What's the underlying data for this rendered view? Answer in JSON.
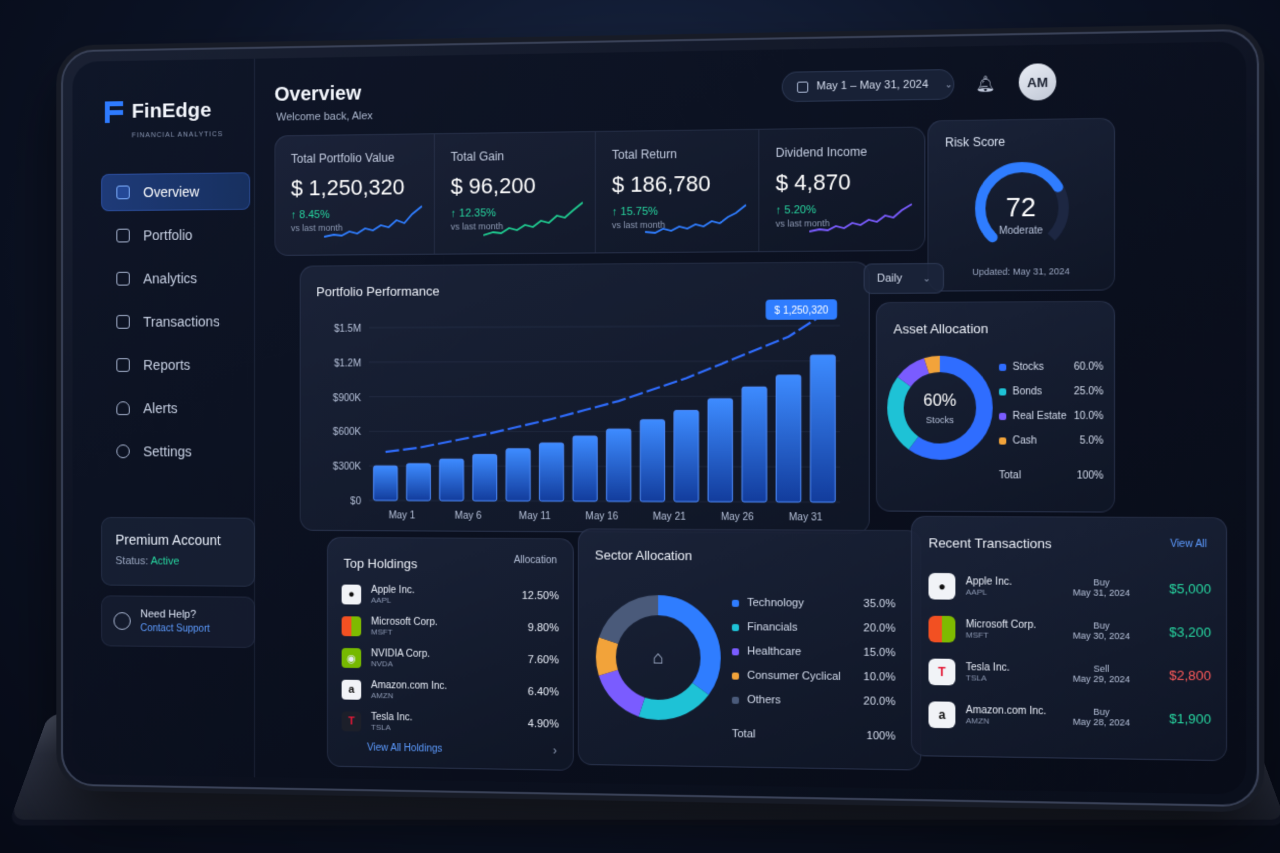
{
  "brand": {
    "name": "FinEdge",
    "tagline": "FINANCIAL ANALYTICS"
  },
  "nav": [
    {
      "label": "Overview",
      "icon": "overview-icon",
      "active": true
    },
    {
      "label": "Portfolio",
      "icon": "portfolio-icon"
    },
    {
      "label": "Analytics",
      "icon": "analytics-icon"
    },
    {
      "label": "Transactions",
      "icon": "transactions-icon"
    },
    {
      "label": "Reports",
      "icon": "reports-icon"
    },
    {
      "label": "Alerts",
      "icon": "bell-icon"
    },
    {
      "label": "Settings",
      "icon": "gear-icon"
    }
  ],
  "premium": {
    "title": "Premium Account",
    "status_label": "Status:",
    "status_value": "Active"
  },
  "help": {
    "title": "Need Help?",
    "link": "Contact Support"
  },
  "header": {
    "title": "Overview",
    "welcome": "Welcome back, Alex",
    "date_range": "May 1 – May 31, 2024",
    "avatar_initials": "AM"
  },
  "kpis": [
    {
      "label": "Total Portfolio Value",
      "value": "$ 1,250,320",
      "change": "↑ 8.45%",
      "sub": "vs last month",
      "color": "#2f7dff"
    },
    {
      "label": "Total Gain",
      "value": "$ 96,200",
      "change": "↑ 12.35%",
      "sub": "vs last month",
      "color": "#1fc98f"
    },
    {
      "label": "Total Return",
      "value": "$ 186,780",
      "change": "↑ 15.75%",
      "sub": "vs last month",
      "color": "#2f7dff"
    },
    {
      "label": "Dividend Income",
      "value": "$ 4,870",
      "change": "↑ 5.20%",
      "sub": "vs last month",
      "color": "#7a5cff"
    }
  ],
  "risk": {
    "title": "Risk Score",
    "value": "72",
    "label": "Moderate",
    "updated": "Updated: May 31, 2024",
    "level": 0.72
  },
  "performance": {
    "title": "Portfolio Performance",
    "range_select": "Daily",
    "tooltip": "$ 1,250,320",
    "chart_data": {
      "type": "bar",
      "title": "Portfolio Performance",
      "y_ticks": [
        "$0",
        "$300K",
        "$600K",
        "$900K",
        "$1.2M",
        "$1.5M"
      ],
      "ylim": [
        0,
        1500000
      ],
      "x_ticks": [
        "May 1",
        "May 6",
        "May 11",
        "May 16",
        "May 21",
        "May 26",
        "May 31"
      ],
      "values": [
        300000,
        320000,
        360000,
        400000,
        450000,
        500000,
        560000,
        620000,
        700000,
        780000,
        880000,
        980000,
        1080000,
        1250000
      ]
    }
  },
  "asset_allocation": {
    "title": "Asset Allocation",
    "center_value": "60%",
    "center_label": "Stocks",
    "items": [
      {
        "name": "Stocks",
        "pct": "60.0%",
        "color": "#2f6dff",
        "value": 60
      },
      {
        "name": "Bonds",
        "pct": "25.0%",
        "color": "#1ec2d6",
        "value": 25
      },
      {
        "name": "Real Estate",
        "pct": "10.0%",
        "color": "#7a5cff",
        "value": 10
      },
      {
        "name": "Cash",
        "pct": "5.0%",
        "color": "#f2a33a",
        "value": 5
      }
    ],
    "total_label": "Total",
    "total_pct": "100%"
  },
  "holdings": {
    "title": "Top Holdings",
    "col": "Allocation",
    "items": [
      {
        "name": "Apple Inc.",
        "ticker": "AAPL",
        "pct": "12.50%",
        "icon": "apple-icon"
      },
      {
        "name": "Microsoft Corp.",
        "ticker": "MSFT",
        "pct": "9.80%",
        "icon": "microsoft-icon"
      },
      {
        "name": "NVIDIA Corp.",
        "ticker": "NVDA",
        "pct": "7.60%",
        "icon": "nvidia-icon"
      },
      {
        "name": "Amazon.com Inc.",
        "ticker": "AMZN",
        "pct": "6.40%",
        "icon": "amazon-icon"
      },
      {
        "name": "Tesla Inc.",
        "ticker": "TSLA",
        "pct": "4.90%",
        "icon": "tesla-icon"
      }
    ],
    "view_all": "View All Holdings"
  },
  "sector": {
    "title": "Sector Allocation",
    "items": [
      {
        "name": "Technology",
        "pct": "35.0%",
        "color": "#2f7dff",
        "value": 35
      },
      {
        "name": "Financials",
        "pct": "20.0%",
        "color": "#1ec2d6",
        "value": 20
      },
      {
        "name": "Healthcare",
        "pct": "15.0%",
        "color": "#7a5cff",
        "value": 15
      },
      {
        "name": "Consumer Cyclical",
        "pct": "10.0%",
        "color": "#f2a33a",
        "value": 10
      },
      {
        "name": "Others",
        "pct": "20.0%",
        "color": "#4a5a7a",
        "value": 20
      }
    ],
    "total_label": "Total",
    "total_pct": "100%"
  },
  "transactions": {
    "title": "Recent Transactions",
    "view_all": "View All",
    "items": [
      {
        "name": "Apple Inc.",
        "ticker": "AAPL",
        "type": "Buy",
        "date": "May 31, 2024",
        "amount": "$5,000",
        "color": "#27d6a0",
        "icon": "apple-icon"
      },
      {
        "name": "Microsoft Corp.",
        "ticker": "MSFT",
        "type": "Buy",
        "date": "May 30, 2024",
        "amount": "$3,200",
        "color": "#27d6a0",
        "icon": "microsoft-icon"
      },
      {
        "name": "Tesla Inc.",
        "ticker": "TSLA",
        "type": "Sell",
        "date": "May 29, 2024",
        "amount": "$2,800",
        "color": "#ff5a5a",
        "icon": "tesla-icon"
      },
      {
        "name": "Amazon.com Inc.",
        "ticker": "AMZN",
        "type": "Buy",
        "date": "May 28, 2024",
        "amount": "$1,900",
        "color": "#27d6a0",
        "icon": "amazon-icon"
      }
    ]
  }
}
